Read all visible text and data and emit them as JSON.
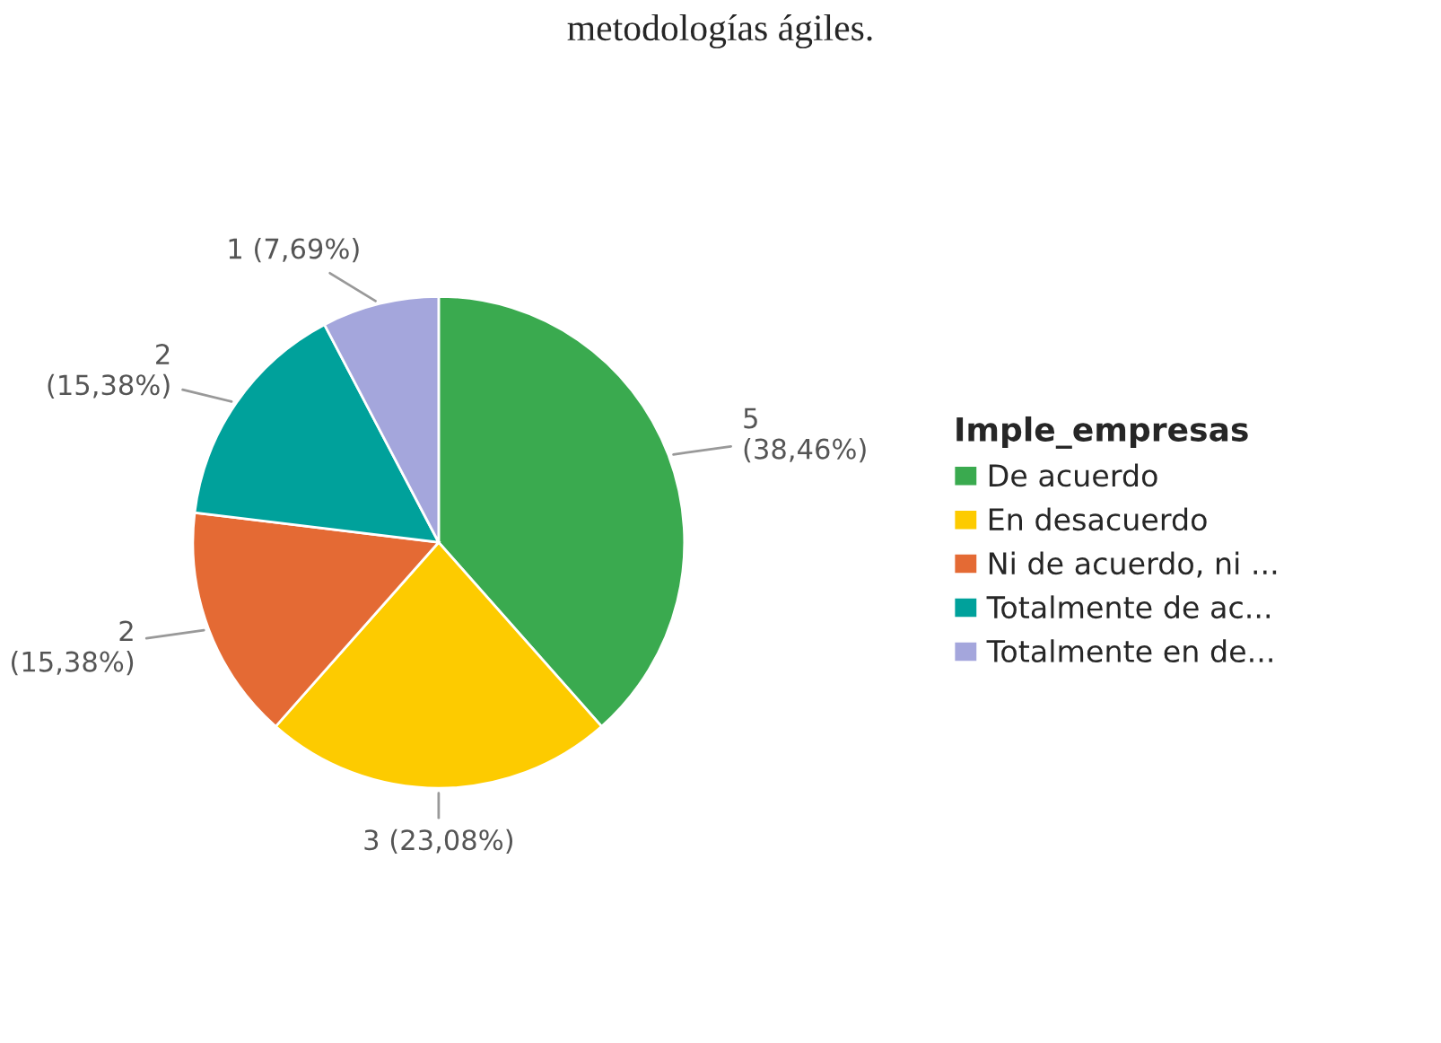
{
  "chart_data": {
    "type": "pie",
    "title": "metodologías ágiles.",
    "legend_title": "Imple_empresas",
    "categories": [
      "De acuerdo",
      "En desacuerdo",
      "Ni de acuerdo, ni ...",
      "Totalmente de ac...",
      "Totalmente en de..."
    ],
    "values": [
      5,
      3,
      2,
      2,
      1
    ],
    "colors": [
      "#3aaa4f",
      "#fdcb00",
      "#e46a34",
      "#00a19b",
      "#a4a6dc"
    ],
    "value_labels": [
      "5\n(38,46%)",
      "3 (23,08%)",
      "2\n(15,38%)",
      "2\n(15,38%)",
      "1 (7,69%)"
    ],
    "legend": "right"
  }
}
